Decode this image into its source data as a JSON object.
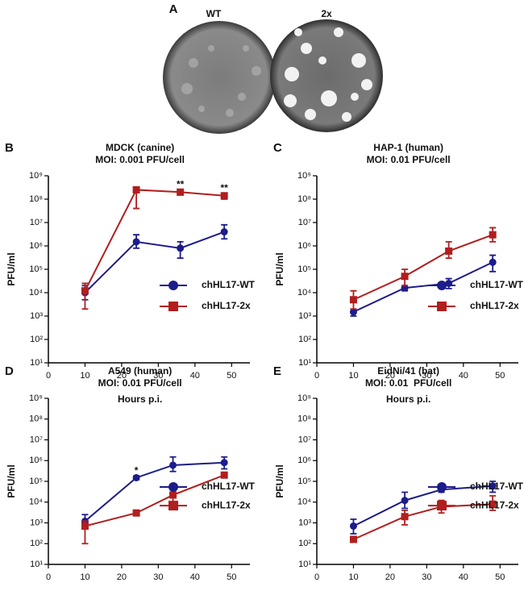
{
  "panel_a": {
    "label": "A",
    "wt_label": "WT",
    "x2_label": "2x"
  },
  "chart_data": [
    {
      "type": "line",
      "panel": "B",
      "title": "MDCK (canine)",
      "subtitle": "MOI: 0.001 PFU/cell",
      "xlabel": "Hours p.i.",
      "ylabel": "PFU/ml",
      "yscale": "log",
      "legend": "lower right",
      "xlim": [
        0,
        55
      ],
      "xticks": [
        0,
        10,
        20,
        30,
        40,
        50
      ],
      "ylim": [
        10,
        1000000000
      ],
      "yticks": [
        {
          "value": 10,
          "label": "10¹"
        },
        {
          "value": 100,
          "label": "10²"
        },
        {
          "value": 1000,
          "label": "10³"
        },
        {
          "value": 10000,
          "label": "10⁴"
        },
        {
          "value": 100000,
          "label": "10⁵"
        },
        {
          "value": 1000000,
          "label": "10⁶"
        },
        {
          "value": 10000000,
          "label": "10⁷"
        },
        {
          "value": 100000000,
          "label": "10⁸"
        },
        {
          "value": 1000000000,
          "label": "10⁹"
        }
      ],
      "x": [
        10,
        24,
        36,
        48
      ],
      "series": [
        {
          "name": "chHL17-WT",
          "color": "#1c1c8a",
          "marker": "circle",
          "values": [
            10000,
            1500000,
            800000,
            4000000
          ],
          "upper": [
            20000,
            3000000,
            1500000,
            8000000
          ],
          "lower": [
            5000,
            800000,
            300000,
            2000000
          ]
        },
        {
          "name": "chHL17-2x",
          "color": "#b11e1e",
          "marker": "square",
          "values": [
            12000,
            250000000,
            200000000,
            140000000
          ],
          "upper": [
            25000,
            300000000,
            250000000,
            180000000
          ],
          "lower": [
            2000,
            40000000,
            150000000,
            100000000
          ]
        }
      ],
      "annotations": [
        {
          "x": 36,
          "text": "**"
        },
        {
          "x": 48,
          "text": "**"
        }
      ]
    },
    {
      "type": "line",
      "panel": "C",
      "title": "HAP-1 (human)",
      "subtitle": "MOI: 0.01 PFU/cell",
      "xlabel": "Hours p.i.",
      "ylabel": "PFU/ml",
      "yscale": "log",
      "legend": "lower right",
      "xlim": [
        0,
        55
      ],
      "xticks": [
        0,
        10,
        20,
        30,
        40,
        50
      ],
      "ylim": [
        10,
        1000000000
      ],
      "yticks": [
        {
          "value": 10,
          "label": "10¹"
        },
        {
          "value": 100,
          "label": "10²"
        },
        {
          "value": 1000,
          "label": "10³"
        },
        {
          "value": 10000,
          "label": "10⁴"
        },
        {
          "value": 100000,
          "label": "10⁵"
        },
        {
          "value": 1000000,
          "label": "10⁶"
        },
        {
          "value": 10000000,
          "label": "10⁷"
        },
        {
          "value": 100000000,
          "label": "10⁸"
        },
        {
          "value": 1000000000,
          "label": "10⁹"
        }
      ],
      "x": [
        10,
        24,
        36,
        48
      ],
      "series": [
        {
          "name": "chHL17-WT",
          "color": "#1c1c8a",
          "marker": "circle",
          "values": [
            1500,
            16000,
            25000,
            200000
          ],
          "upper": [
            2000,
            20000,
            40000,
            400000
          ],
          "lower": [
            1000,
            12000,
            15000,
            80000
          ]
        },
        {
          "name": "chHL17-2x",
          "color": "#b11e1e",
          "marker": "square",
          "values": [
            5000,
            50000,
            600000,
            3000000
          ],
          "upper": [
            12000,
            100000,
            1500000,
            6000000
          ],
          "lower": [
            2000,
            20000,
            300000,
            1500000
          ]
        }
      ],
      "annotations": []
    },
    {
      "type": "line",
      "panel": "D",
      "title": "A549 (human)",
      "subtitle": "MOI: 0.01 PFU/cell",
      "xlabel": "Hours p.i.",
      "ylabel": "PFU/ml",
      "yscale": "log",
      "legend": "lower right",
      "xlim": [
        0,
        55
      ],
      "xticks": [
        0,
        10,
        20,
        30,
        40,
        50
      ],
      "ylim": [
        10,
        1000000000
      ],
      "yticks": [
        {
          "value": 10,
          "label": "10¹"
        },
        {
          "value": 100,
          "label": "10²"
        },
        {
          "value": 1000,
          "label": "10³"
        },
        {
          "value": 10000,
          "label": "10⁴"
        },
        {
          "value": 100000,
          "label": "10⁵"
        },
        {
          "value": 1000000,
          "label": "10⁶"
        },
        {
          "value": 10000000,
          "label": "10⁷"
        },
        {
          "value": 100000000,
          "label": "10⁸"
        },
        {
          "value": 1000000000,
          "label": "10⁹"
        }
      ],
      "x": [
        10,
        24,
        34,
        48
      ],
      "series": [
        {
          "name": "chHL17-WT",
          "color": "#1c1c8a",
          "marker": "circle",
          "values": [
            1200,
            150000,
            600000,
            800000
          ],
          "upper": [
            2500,
            180000,
            1500000,
            1500000
          ],
          "lower": [
            600,
            120000,
            300000,
            400000
          ]
        },
        {
          "name": "chHL17-2x",
          "color": "#b11e1e",
          "marker": "square",
          "values": [
            700,
            3000,
            22000,
            200000
          ],
          "upper": [
            1200,
            3500,
            50000,
            250000
          ],
          "lower": [
            100,
            2500,
            10000,
            150000
          ]
        }
      ],
      "annotations": [
        {
          "x": 24,
          "text": "*"
        }
      ]
    },
    {
      "type": "line",
      "panel": "E",
      "title": "EidNi/41 (bat)",
      "subtitle": "MOI: 0.01  PFU/cell",
      "xlabel": "Hours p.i.",
      "ylabel": "PFU/ml",
      "yscale": "log",
      "legend": "lower right",
      "xlim": [
        0,
        55
      ],
      "xticks": [
        0,
        10,
        20,
        30,
        40,
        50
      ],
      "ylim": [
        10,
        1000000000
      ],
      "yticks": [
        {
          "value": 10,
          "label": "10¹"
        },
        {
          "value": 100,
          "label": "10²"
        },
        {
          "value": 1000,
          "label": "10³"
        },
        {
          "value": 10000,
          "label": "10⁴"
        },
        {
          "value": 100000,
          "label": "10⁵"
        },
        {
          "value": 1000000,
          "label": "10⁶"
        },
        {
          "value": 10000000,
          "label": "10⁷"
        },
        {
          "value": 100000000,
          "label": "10⁸"
        },
        {
          "value": 1000000000,
          "label": "10⁹"
        }
      ],
      "x": [
        10,
        24,
        34,
        48
      ],
      "series": [
        {
          "name": "chHL17-WT",
          "color": "#1c1c8a",
          "marker": "circle",
          "values": [
            700,
            12000,
            40000,
            60000
          ],
          "upper": [
            1500,
            30000,
            50000,
            100000
          ],
          "lower": [
            300,
            5000,
            30000,
            30000
          ]
        },
        {
          "name": "chHL17-2x",
          "color": "#b11e1e",
          "marker": "square",
          "values": [
            160,
            2000,
            6000,
            8000
          ],
          "upper": [
            200,
            4000,
            12000,
            20000
          ],
          "lower": [
            120,
            800,
            3000,
            4000
          ]
        }
      ],
      "annotations": []
    }
  ]
}
